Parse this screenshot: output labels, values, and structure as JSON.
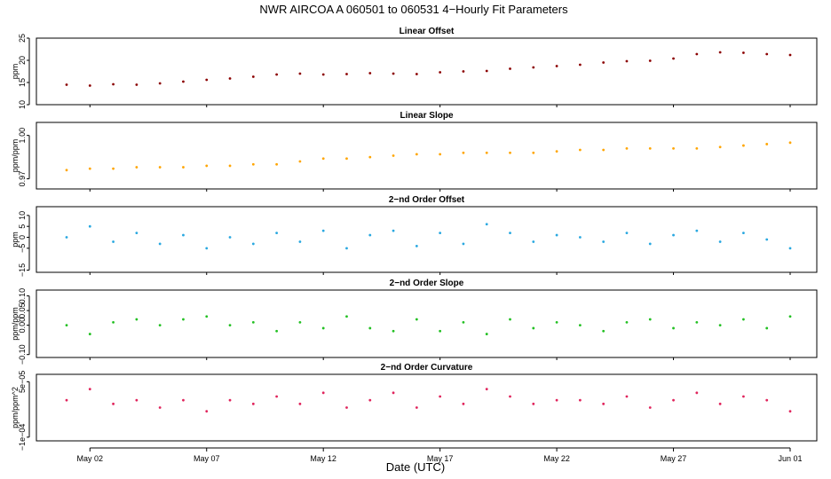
{
  "title": "NWR   AIRCOA A   060501 to 060531   4−Hourly Fit Parameters",
  "xlabel": "Date (UTC)",
  "x_ticks": [
    "May 02",
    "May 07",
    "May 12",
    "May 17",
    "May 22",
    "May 27",
    "Jun 01"
  ],
  "chart_data": [
    {
      "type": "scatter",
      "title": "Linear Offset",
      "ylabel": "ppm",
      "color": "#8B0000",
      "yticks": [
        "10",
        "15",
        "20",
        "25"
      ],
      "ylim": [
        10,
        25
      ],
      "x": [
        "May 01",
        "May 02",
        "May 03",
        "May 04",
        "May 05",
        "May 06",
        "May 07",
        "May 08",
        "May 09",
        "May 10",
        "May 11",
        "May 12",
        "May 13",
        "May 14",
        "May 15",
        "May 16",
        "May 17",
        "May 18",
        "May 19",
        "May 20",
        "May 21",
        "May 22",
        "May 23",
        "May 24",
        "May 25",
        "May 26",
        "May 27",
        "May 28",
        "May 29",
        "May 30",
        "May 31",
        "Jun 01"
      ],
      "values": [
        14.5,
        14.3,
        14.6,
        14.5,
        14.8,
        15.2,
        15.6,
        15.9,
        16.3,
        16.8,
        17.0,
        16.8,
        16.9,
        17.1,
        17.0,
        16.9,
        17.3,
        17.5,
        17.6,
        18.1,
        18.4,
        18.7,
        19.0,
        19.5,
        19.8,
        19.9,
        20.4,
        21.4,
        21.8,
        21.7,
        21.4,
        21.2
      ]
    },
    {
      "type": "scatter",
      "title": "Linear Slope",
      "ylabel": "ppm/ppm",
      "color": "#FFA500",
      "yticks": [
        "0.97",
        "1.00"
      ],
      "ylim": [
        0.963,
        1.009
      ],
      "x": [
        "May 01",
        "May 02",
        "May 03",
        "May 04",
        "May 05",
        "May 06",
        "May 07",
        "May 08",
        "May 09",
        "May 10",
        "May 11",
        "May 12",
        "May 13",
        "May 14",
        "May 15",
        "May 16",
        "May 17",
        "May 18",
        "May 19",
        "May 20",
        "May 21",
        "May 22",
        "May 23",
        "May 24",
        "May 25",
        "May 26",
        "May 27",
        "May 28",
        "May 29",
        "May 30",
        "May 31",
        "Jun 01"
      ],
      "values": [
        0.976,
        0.977,
        0.977,
        0.978,
        0.978,
        0.978,
        0.979,
        0.979,
        0.98,
        0.98,
        0.982,
        0.984,
        0.984,
        0.985,
        0.986,
        0.987,
        0.987,
        0.988,
        0.988,
        0.988,
        0.988,
        0.989,
        0.99,
        0.99,
        0.991,
        0.991,
        0.991,
        0.991,
        0.992,
        0.993,
        0.994,
        0.995
      ]
    },
    {
      "type": "scatter",
      "title": "2−nd Order Offset",
      "ylabel": "ppm",
      "color": "#29A8E0",
      "yticks": [
        "−15",
        "−5",
        "0",
        "5",
        "10"
      ],
      "ylim": [
        -16,
        14
      ],
      "x": [
        "May 01",
        "May 02",
        "May 03",
        "May 04",
        "May 05",
        "May 06",
        "May 07",
        "May 08",
        "May 09",
        "May 10",
        "May 11",
        "May 12",
        "May 13",
        "May 14",
        "May 15",
        "May 16",
        "May 17",
        "May 18",
        "May 19",
        "May 20",
        "May 21",
        "May 22",
        "May 23",
        "May 24",
        "May 25",
        "May 26",
        "May 27",
        "May 28",
        "May 29",
        "May 30",
        "May 31",
        "Jun 01"
      ],
      "values": [
        0,
        5,
        -2,
        2,
        -3,
        1,
        -5,
        0,
        -3,
        2,
        -2,
        3,
        -5,
        1,
        3,
        -4,
        2,
        -3,
        6,
        2,
        -2,
        1,
        0,
        -2,
        2,
        -3,
        1,
        3,
        -2,
        2,
        -1,
        -5
      ]
    },
    {
      "type": "scatter",
      "title": "2−nd Order Slope",
      "ylabel": "ppm/ppm",
      "color": "#22C022",
      "yticks": [
        "−0.10",
        "0.00",
        "0.05",
        "0.10"
      ],
      "ylim": [
        -0.11,
        0.12
      ],
      "x": [
        "May 01",
        "May 02",
        "May 03",
        "May 04",
        "May 05",
        "May 06",
        "May 07",
        "May 08",
        "May 09",
        "May 10",
        "May 11",
        "May 12",
        "May 13",
        "May 14",
        "May 15",
        "May 16",
        "May 17",
        "May 18",
        "May 19",
        "May 20",
        "May 21",
        "May 22",
        "May 23",
        "May 24",
        "May 25",
        "May 26",
        "May 27",
        "May 28",
        "May 29",
        "May 30",
        "May 31",
        "Jun 01"
      ],
      "values": [
        0.0,
        -0.03,
        0.01,
        0.02,
        0.0,
        0.02,
        0.03,
        0.0,
        0.01,
        -0.02,
        0.01,
        -0.01,
        0.03,
        -0.01,
        -0.02,
        0.02,
        -0.02,
        0.01,
        -0.03,
        0.02,
        -0.01,
        0.01,
        0.0,
        -0.02,
        0.01,
        0.02,
        -0.01,
        0.01,
        0.0,
        0.02,
        -0.01,
        0.03
      ]
    },
    {
      "type": "scatter",
      "title": "2−nd Order Curvature",
      "ylabel": "ppm/ppm^2",
      "color": "#E0245C",
      "yticks": [
        "−1e−04",
        "5e−05"
      ],
      "ylim": [
        -0.00011,
        7e-05
      ],
      "x": [
        "May 01",
        "May 02",
        "May 03",
        "May 04",
        "May 05",
        "May 06",
        "May 07",
        "May 08",
        "May 09",
        "May 10",
        "May 11",
        "May 12",
        "May 13",
        "May 14",
        "May 15",
        "May 16",
        "May 17",
        "May 18",
        "May 19",
        "May 20",
        "May 21",
        "May 22",
        "May 23",
        "May 24",
        "May 25",
        "May 26",
        "May 27",
        "May 28",
        "May 29",
        "May 30",
        "May 31",
        "Jun 01"
      ],
      "values": [
        0.0,
        3e-05,
        -1e-05,
        0.0,
        -2e-05,
        0.0,
        -3e-05,
        0.0,
        -1e-05,
        1e-05,
        -1e-05,
        2e-05,
        -2e-05,
        0.0,
        2e-05,
        -2e-05,
        1e-05,
        -1e-05,
        3e-05,
        1e-05,
        -1e-05,
        0.0,
        0.0,
        -1e-05,
        1e-05,
        -2e-05,
        0.0,
        2e-05,
        -1e-05,
        1e-05,
        0.0,
        -3e-05
      ]
    }
  ]
}
